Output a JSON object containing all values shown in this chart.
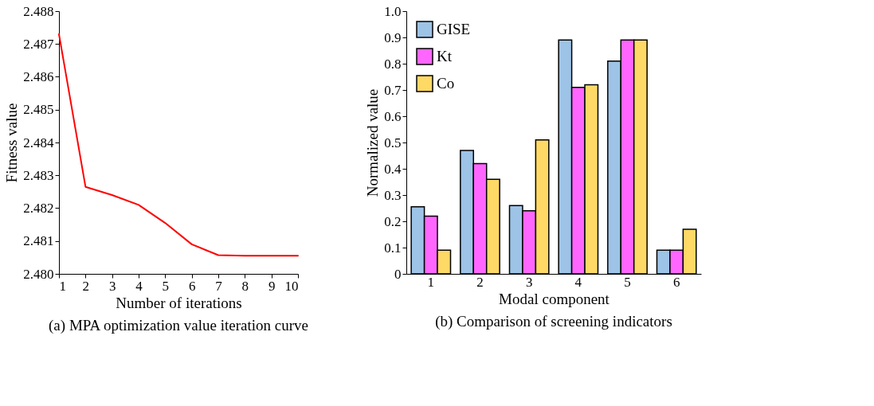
{
  "chart_data": [
    {
      "type": "line",
      "title": "(a) MPA optimization value iteration curve",
      "xlabel": "Number of iterations",
      "ylabel": "Fitness value",
      "x": [
        1,
        2,
        3,
        4,
        5,
        6,
        7,
        8,
        9,
        10
      ],
      "series": [
        {
          "color": "#ff0000",
          "values": [
            2.4873,
            2.48265,
            2.4824,
            2.4821,
            2.48155,
            2.4809,
            2.48057,
            2.48055,
            2.48055,
            2.48055
          ]
        }
      ],
      "xlim": [
        1,
        10
      ],
      "xticks": [
        1,
        2,
        3,
        4,
        5,
        6,
        7,
        8,
        9,
        10
      ],
      "ylim": [
        2.48,
        2.488
      ],
      "yticks": [
        {
          "value": 2.48,
          "label": "2.480"
        },
        2.481,
        2.482,
        2.483,
        2.484,
        2.485,
        2.486,
        2.487,
        2.488
      ],
      "grid": false,
      "marker": "none",
      "line_style": "solid"
    },
    {
      "type": "bar",
      "title": "(b) Comparison of screening indicators",
      "xlabel": "Modal component",
      "ylabel": "Normalized value",
      "categories": [
        "1",
        "2",
        "3",
        "4",
        "5",
        "6"
      ],
      "series": [
        {
          "name": "GISE",
          "color": "#9dc3e6",
          "values": [
            0.255,
            0.47,
            0.26,
            0.89,
            0.81,
            0.09
          ]
        },
        {
          "name": "Kt",
          "color": "#ff66ff",
          "values": [
            0.22,
            0.42,
            0.24,
            0.71,
            0.89,
            0.09
          ]
        },
        {
          "name": "Co",
          "color": "#ffd966",
          "values": [
            0.09,
            0.36,
            0.51,
            0.72,
            0.89,
            0.17
          ]
        }
      ],
      "ylim": [
        0,
        1
      ],
      "yticks": [
        0,
        0.1,
        0.2,
        0.3,
        0.4,
        0.5,
        0.6,
        0.7,
        0.8,
        0.9,
        {
          "value": 1,
          "label": "1.0"
        }
      ],
      "grid": false,
      "legend": "top left"
    }
  ]
}
